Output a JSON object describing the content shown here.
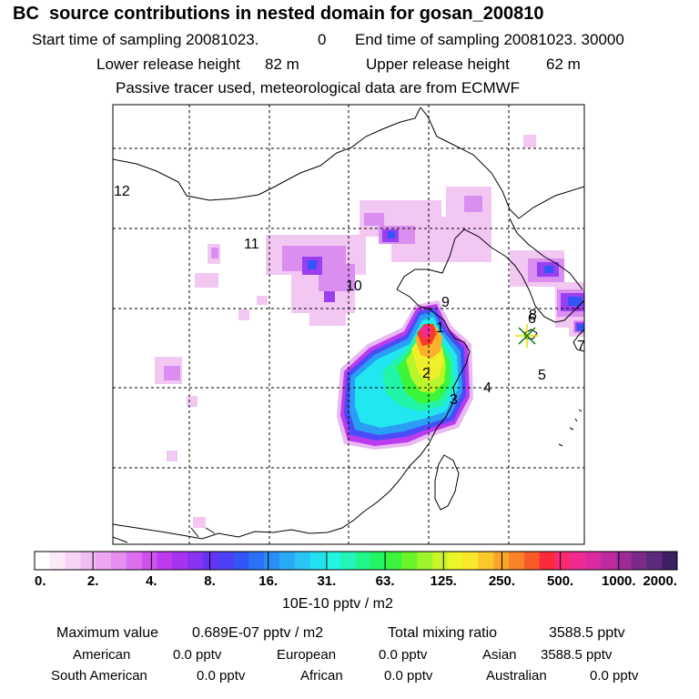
{
  "header": {
    "title": "BC  source contributions in nested domain for gosan_200810",
    "start_label": "Start time of sampling 20081023.",
    "start_hms": "0",
    "end_label": "End time of sampling 20081023. 30000",
    "lower_label": "Lower release height",
    "lower_value": "82 m",
    "upper_label": "Upper release height",
    "upper_value": "62 m",
    "tracer_note": "Passive tracer used, meteorological data are from ECMWF"
  },
  "chart_data": {
    "type": "heatmap",
    "title": "BC  source contributions in nested domain for gosan_200810",
    "units": "10E-10 pptv / m2",
    "grid": true,
    "region_labels": [
      "1",
      "2",
      "3",
      "4",
      "5",
      "6",
      "7",
      "8",
      "9",
      "10",
      "11",
      "12"
    ],
    "receptor": "gosan",
    "colorbar": {
      "tick_labels": [
        "0.",
        "2.",
        "4.",
        "8.",
        "16.",
        "31.",
        "63.",
        "125.",
        "250.",
        "500.",
        "1000.",
        "2000."
      ],
      "tick_values": [
        0,
        2,
        4,
        8,
        16,
        31,
        63,
        125,
        250,
        500,
        1000,
        2000
      ],
      "colors": [
        "#ffffff",
        "#fbe8fb",
        "#f7d4f7",
        "#f2bdf2",
        "#eea6f0",
        "#e68ff0",
        "#dc6ff0",
        "#cf52ef",
        "#bd3bef",
        "#a733f0",
        "#8833f2",
        "#6633f5",
        "#4d3ff5",
        "#3355f5",
        "#2a72f5",
        "#2a8ef5",
        "#29aaf5",
        "#29c5f5",
        "#22e0f0",
        "#22f5e2",
        "#22f5b5",
        "#22f58a",
        "#22f560",
        "#3af53a",
        "#6af52a",
        "#9af52a",
        "#c9f52a",
        "#eaf52a",
        "#fae62a",
        "#fac82a",
        "#faa52a",
        "#fa822a",
        "#fa5a2a",
        "#fa2a3a",
        "#fa2a72",
        "#f02a90",
        "#dc2aa0",
        "#c02aa0",
        "#9e2a98",
        "#7c2a8a",
        "#5c2a7a",
        "#3d2064"
      ]
    }
  },
  "footer": {
    "units": "10E-10 pptv / m2",
    "max_label": "Maximum value",
    "max_value": "0.689E-07 pptv / m2",
    "total_label": "Total mixing ratio",
    "total_value": "3588.5 pptv",
    "american_label": "American",
    "american_value": "0.0 pptv",
    "european_label": "European",
    "european_value": "0.0 pptv",
    "asian_label": "Asian",
    "asian_value": "3588.5 pptv",
    "south_american_label": "South American",
    "south_american_value": "0.0 pptv",
    "african_label": "African",
    "african_value": "0.0 pptv",
    "australian_label": "Australian",
    "australian_value": "0.0 pptv"
  }
}
